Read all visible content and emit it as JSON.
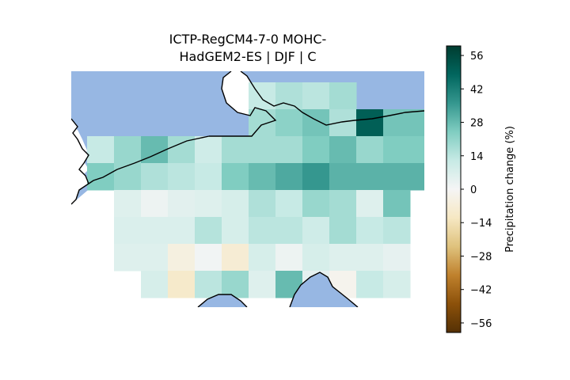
{
  "chart_data": {
    "type": "heatmap",
    "title_line1": "ICTP-RegCM4-7-0 MOHC-",
    "title_line2": "HadGEM2-ES | DJF | C",
    "colorbar": {
      "label": "Precipitation change (%)",
      "range": [
        -60,
        60
      ],
      "ticks": [
        56,
        42,
        28,
        14,
        0,
        -14,
        -28,
        -42,
        -56
      ],
      "tick_labels": [
        "56",
        "42",
        "28",
        "14",
        "0",
        "−14",
        "−28",
        "−42",
        "−56"
      ],
      "colormap": "BrBG"
    },
    "grid": {
      "columns": 13,
      "rows": 8,
      "values": [
        [
          null,
          null,
          null,
          null,
          null,
          null,
          12,
          16,
          14,
          18,
          null,
          null,
          null
        ],
        [
          null,
          null,
          null,
          null,
          null,
          null,
          18,
          22,
          26,
          16,
          50,
          26,
          26
        ],
        [
          12,
          20,
          28,
          18,
          10,
          18,
          18,
          18,
          24,
          28,
          20,
          24,
          24
        ],
        [
          24,
          20,
          16,
          14,
          12,
          24,
          28,
          32,
          36,
          30,
          30,
          30,
          30
        ],
        [
          null,
          6,
          2,
          5,
          6,
          8,
          16,
          12,
          20,
          18,
          6,
          26,
          null
        ],
        [
          null,
          7,
          7,
          7,
          15,
          8,
          14,
          14,
          10,
          18,
          12,
          14,
          null
        ],
        [
          null,
          6,
          6,
          -5,
          1,
          -8,
          8,
          2,
          8,
          6,
          6,
          4,
          null
        ],
        [
          null,
          null,
          8,
          -10,
          14,
          20,
          6,
          28,
          4,
          -2,
          12,
          8,
          null
        ]
      ]
    },
    "colors": {
      "sea": "#97b7e3",
      "land_mask": "#ffffff",
      "coastline": "#000000"
    }
  }
}
